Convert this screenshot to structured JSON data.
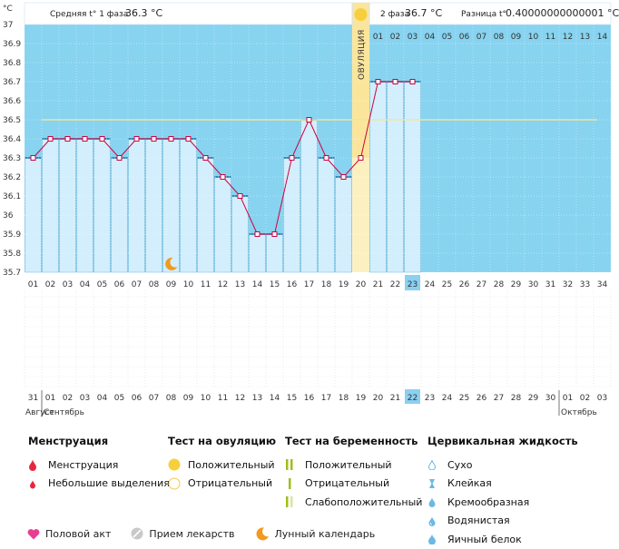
{
  "header": {
    "unit": "°C",
    "phase1_label": "Средняя t° 1 фаза",
    "phase1_value": "36.3 °C",
    "phase2_label": "2 фаза",
    "phase2_value": "36.7 °C",
    "diff_label": "Разница t°",
    "diff_value": "0.40000000000001 °C",
    "ovulation_label": "ОВУЛЯЦИЯ",
    "phase2_day_labels": [
      "01",
      "02",
      "03",
      "04",
      "05",
      "06",
      "07",
      "08",
      "09",
      "10",
      "11",
      "12",
      "13",
      "14"
    ]
  },
  "chart_data": {
    "type": "line",
    "title": "",
    "xlabel": "",
    "ylabel": "°C",
    "ylim": [
      35.7,
      37.0
    ],
    "y_ticks": [
      "37",
      "36.9",
      "36.8",
      "36.7",
      "36.6",
      "36.5",
      "36.4",
      "36.3",
      "36.2",
      "36.1",
      "36",
      "35.9",
      "35.8",
      "35.7"
    ],
    "cycle_days": [
      "01",
      "02",
      "03",
      "04",
      "05",
      "06",
      "07",
      "08",
      "09",
      "10",
      "11",
      "12",
      "13",
      "14",
      "15",
      "16",
      "17",
      "18",
      "19",
      "20",
      "21",
      "22",
      "23",
      "24",
      "25",
      "26",
      "27",
      "28",
      "29",
      "30",
      "31",
      "32",
      "33",
      "34"
    ],
    "temperatures": [
      36.3,
      36.4,
      36.4,
      36.4,
      36.4,
      36.3,
      36.4,
      36.4,
      36.4,
      36.4,
      36.3,
      36.2,
      36.1,
      35.9,
      35.9,
      36.3,
      36.5,
      36.3,
      36.2,
      36.3,
      36.7,
      36.7,
      36.7
    ],
    "coverline": 36.5,
    "ovulation_day": 20,
    "current_day": 23,
    "moon_day": 9,
    "dates": [
      "31",
      "01",
      "02",
      "03",
      "04",
      "05",
      "06",
      "07",
      "08",
      "09",
      "10",
      "11",
      "12",
      "13",
      "14",
      "15",
      "16",
      "17",
      "18",
      "19",
      "20",
      "21",
      "22",
      "23",
      "24",
      "25",
      "26",
      "27",
      "28",
      "29",
      "30",
      "01",
      "02",
      "03"
    ],
    "red_date_indices": [
      2,
      3,
      9,
      10,
      16,
      17,
      23,
      24,
      30,
      31
    ],
    "months": {
      "prev": "Август",
      "first": "Сентябрь",
      "next": "Октябрь"
    }
  },
  "legend": {
    "menstruation": {
      "title": "Менструация",
      "items": [
        "Менструация",
        "Небольшие выделения"
      ]
    },
    "ovulation_test": {
      "title": "Тест на овуляцию",
      "items": [
        "Положительный",
        "Отрицательный"
      ]
    },
    "pregnancy_test": {
      "title": "Тест на беременность",
      "items": [
        "Положительный",
        "Отрицательный",
        "Слабоположительный"
      ]
    },
    "cervical_fluid": {
      "title": "Цервикальная жидкость",
      "items": [
        "Сухо",
        "Клейкая",
        "Кремообразная",
        "Водянистая",
        "Яичный белок"
      ]
    },
    "bottom": [
      "Половой акт",
      "Прием лекарств",
      "Лунный календарь"
    ]
  },
  "colors": {
    "sky": "#87d3f0",
    "bar": "#d3eefc",
    "bar_border": "#6fb9dc",
    "line": "#d00040",
    "coverline": "#ece6a0",
    "ovulation": "#fbe59b",
    "highlight": "#8bd0f1",
    "red_date": "#d00040",
    "sun": "#f7cf3d",
    "moon": "#f29a1d"
  }
}
